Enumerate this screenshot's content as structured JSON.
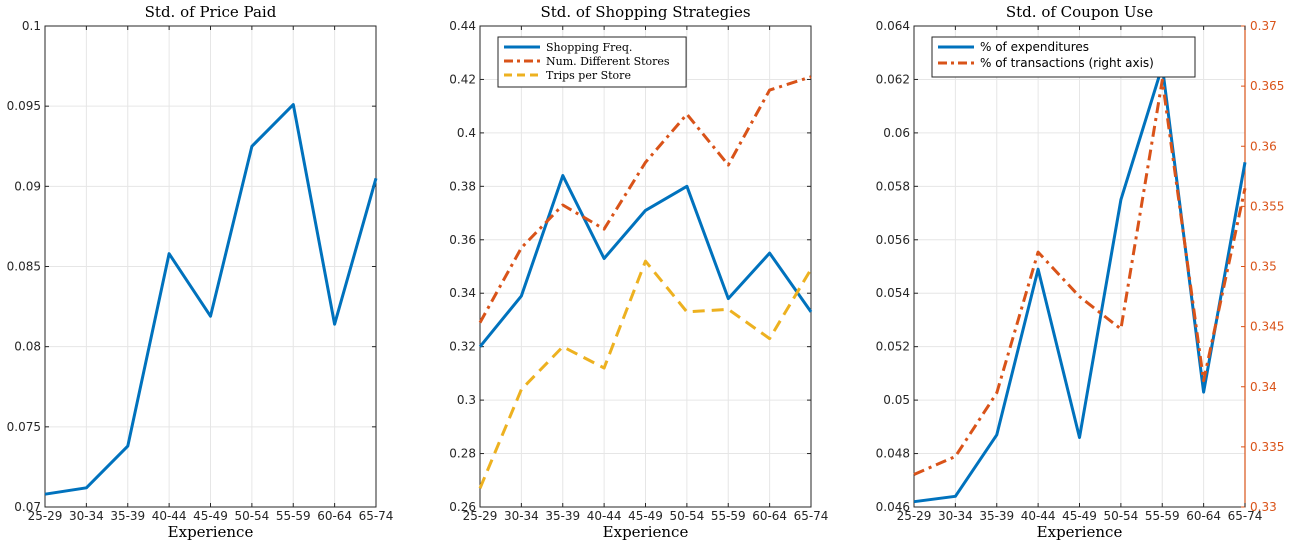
{
  "chart_data": [
    {
      "type": "line",
      "title": "Std. of Price Paid",
      "xlabel": "Experience",
      "ylabel": "",
      "categories": [
        "25-29",
        "30-34",
        "35-39",
        "40-44",
        "45-49",
        "50-54",
        "55-59",
        "60-64",
        "65-74"
      ],
      "ylim": [
        0.07,
        0.1
      ],
      "yticks": [
        "0.07",
        "0.075",
        "0.08",
        "0.085",
        "0.09",
        "0.095",
        "0.1"
      ],
      "grid": true,
      "series": [
        {
          "name": "",
          "color": "#0072BD",
          "style": "solid",
          "axis": "left",
          "values": [
            0.0708,
            0.0712,
            0.0738,
            0.0858,
            0.0819,
            0.0925,
            0.0951,
            0.0814,
            0.0905
          ]
        }
      ]
    },
    {
      "type": "line",
      "title": "Std. of Shopping Strategies",
      "xlabel": "Experience",
      "ylabel": "",
      "categories": [
        "25-29",
        "30-34",
        "35-39",
        "40-44",
        "45-49",
        "50-54",
        "55-59",
        "60-64",
        "65-74"
      ],
      "ylim": [
        0.26,
        0.44
      ],
      "yticks": [
        "0.26",
        "0.28",
        "0.3",
        "0.32",
        "0.34",
        "0.36",
        "0.38",
        "0.4",
        "0.42",
        "0.44"
      ],
      "grid": true,
      "legend": "top-left",
      "series": [
        {
          "name": "Shopping Freq.",
          "color": "#0072BD",
          "style": "solid",
          "axis": "left",
          "values": [
            0.32,
            0.339,
            0.384,
            0.353,
            0.371,
            0.38,
            0.338,
            0.355,
            0.333
          ]
        },
        {
          "name": "Num. Different Stores",
          "color": "#D95319",
          "style": "dashdot",
          "axis": "left",
          "values": [
            0.329,
            0.357,
            0.373,
            0.364,
            0.389,
            0.407,
            0.388,
            0.416,
            0.421
          ]
        },
        {
          "name": "Trips per Store",
          "color": "#EDB120",
          "style": "dashed",
          "axis": "left",
          "values": [
            0.267,
            0.304,
            0.32,
            0.312,
            0.352,
            0.333,
            0.334,
            0.323,
            0.349
          ]
        }
      ]
    },
    {
      "type": "line",
      "title": "Std. of Coupon Use",
      "xlabel": "Experience",
      "ylabel": "",
      "categories": [
        "25-29",
        "30-34",
        "35-39",
        "40-44",
        "45-49",
        "50-54",
        "55-59",
        "60-64",
        "65-74"
      ],
      "ylim": [
        0.046,
        0.064
      ],
      "yticks": [
        "0.046",
        "0.048",
        "0.05",
        "0.052",
        "0.054",
        "0.056",
        "0.058",
        "0.06",
        "0.062",
        "0.064"
      ],
      "ylim_right": [
        0.33,
        0.37
      ],
      "yticks_right": [
        "0.33",
        "0.335",
        "0.34",
        "0.345",
        "0.35",
        "0.355",
        "0.36",
        "0.365",
        "0.37"
      ],
      "grid": true,
      "legend": "top-left",
      "series": [
        {
          "name": "% of expenditures",
          "color": "#0072BD",
          "style": "solid",
          "axis": "left",
          "values": [
            0.0462,
            0.0464,
            0.0487,
            0.0549,
            0.0486,
            0.0575,
            0.0625,
            0.0503,
            0.0589
          ]
        },
        {
          "name": "% of transactions (right axis)",
          "color": "#D95319",
          "style": "dashdot",
          "axis": "right",
          "values": [
            0.3327,
            0.3342,
            0.3395,
            0.3512,
            0.3475,
            0.3448,
            0.3655,
            0.3405,
            0.3565
          ]
        }
      ]
    }
  ]
}
